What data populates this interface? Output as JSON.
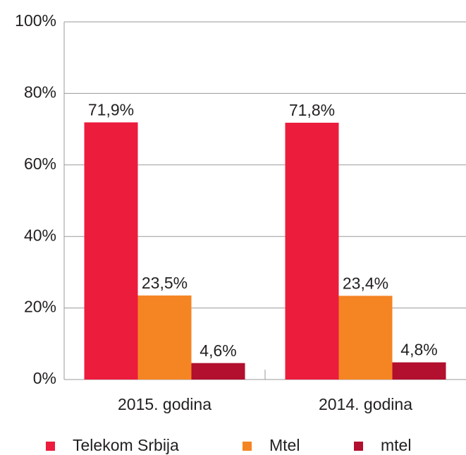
{
  "chart_data": {
    "type": "bar",
    "categories": [
      "2015. godina",
      "2014. godina"
    ],
    "series": [
      {
        "name": "Telekom Srbija",
        "color": "#ec1c3d",
        "values": [
          71.9,
          71.8
        ],
        "value_labels": [
          "71,9%",
          "71,8%"
        ]
      },
      {
        "name": "Mtel",
        "color": "#f58423",
        "values": [
          23.5,
          23.4
        ],
        "value_labels": [
          "23,5%",
          "23,4%"
        ]
      },
      {
        "name": "mtel",
        "color": "#b30f2e",
        "values": [
          4.6,
          4.8
        ],
        "value_labels": [
          "4,6%",
          "4,8%"
        ]
      }
    ],
    "ylim": [
      0,
      100
    ],
    "yticks": [
      {
        "value": 0,
        "label": "0%"
      },
      {
        "value": 20,
        "label": "20%"
      },
      {
        "value": 40,
        "label": "40%"
      },
      {
        "value": 60,
        "label": "60%"
      },
      {
        "value": 80,
        "label": "80%"
      },
      {
        "value": 100,
        "label": "100%"
      }
    ],
    "grid": true,
    "legend": "bottom"
  }
}
